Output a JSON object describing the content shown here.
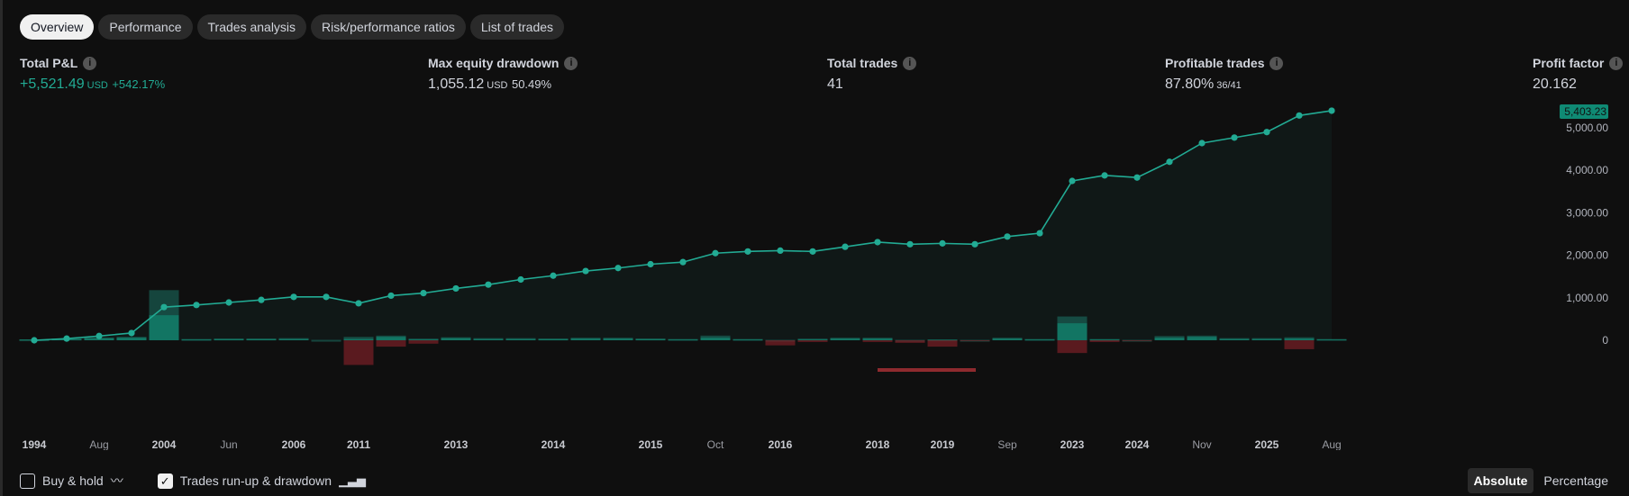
{
  "tabs": [
    "Overview",
    "Performance",
    "Trades analysis",
    "Risk/performance ratios",
    "List of trades"
  ],
  "active_tab": 0,
  "stats": {
    "total_pnl": {
      "label": "Total P&L",
      "value": "+5,521.49",
      "unit": "USD",
      "pct": "+542.17%"
    },
    "max_dd": {
      "label": "Max equity drawdown",
      "value": "1,055.12",
      "unit": "USD",
      "pct": "50.49%"
    },
    "total_trades": {
      "label": "Total trades",
      "value": "41"
    },
    "profitable": {
      "label": "Profitable trades",
      "value": "87.80%",
      "ratio": "36/41"
    },
    "profit_factor": {
      "label": "Profit factor",
      "value": "20.162"
    }
  },
  "footer": {
    "buy_hold": "Buy & hold",
    "buy_hold_checked": false,
    "runup": "Trades run-up & drawdown",
    "runup_checked": true,
    "absolute": "Absolute",
    "percentage": "Percentage",
    "selected": "Absolute"
  },
  "colors": {
    "line": "#22ab94",
    "runup": "#0f7a66",
    "drawdown": "#6e1f24",
    "bg": "#0f0f0f"
  },
  "chart_data": {
    "type": "line",
    "last_value_label": "5,403.23",
    "y_ticks": [
      "0",
      "1,000.00",
      "2,000.00",
      "3,000.00",
      "4,000.00",
      "5,000.00"
    ],
    "y_tick_values": [
      0,
      1000,
      2000,
      3000,
      4000,
      5000
    ],
    "x_labels": [
      {
        "t": "1994",
        "i": 0,
        "b": true
      },
      {
        "t": "Aug",
        "i": 2,
        "b": false
      },
      {
        "t": "2004",
        "i": 4,
        "b": true
      },
      {
        "t": "Jun",
        "i": 6,
        "b": false
      },
      {
        "t": "2006",
        "i": 8,
        "b": true
      },
      {
        "t": "2011",
        "i": 10,
        "b": true
      },
      {
        "t": "2013",
        "i": 13,
        "b": true
      },
      {
        "t": "2014",
        "i": 16,
        "b": true
      },
      {
        "t": "2015",
        "i": 19,
        "b": true
      },
      {
        "t": "Oct",
        "i": 21,
        "b": false
      },
      {
        "t": "2016",
        "i": 23,
        "b": true
      },
      {
        "t": "2018",
        "i": 26,
        "b": true
      },
      {
        "t": "2019",
        "i": 28,
        "b": true
      },
      {
        "t": "Sep",
        "i": 30,
        "b": false
      },
      {
        "t": "2023",
        "i": 32,
        "b": true
      },
      {
        "t": "2024",
        "i": 34,
        "b": true
      },
      {
        "t": "Nov",
        "i": 36,
        "b": false
      },
      {
        "t": "2025",
        "i": 38,
        "b": true
      },
      {
        "t": "Aug",
        "i": 40,
        "b": false
      }
    ],
    "equity": [
      0,
      40,
      100,
      170,
      780,
      830,
      890,
      950,
      1020,
      1020,
      870,
      1050,
      1110,
      1220,
      1310,
      1430,
      1520,
      1630,
      1700,
      1790,
      1840,
      2050,
      2090,
      2110,
      2090,
      2200,
      2310,
      2260,
      2280,
      2260,
      2440,
      2520,
      3750,
      3880,
      3830,
      4200,
      4640,
      4770,
      4900,
      5290,
      5403
    ],
    "runup": [
      20,
      40,
      60,
      80,
      1180,
      30,
      40,
      40,
      50,
      10,
      80,
      110,
      40,
      70,
      50,
      50,
      40,
      60,
      60,
      40,
      30,
      110,
      30,
      10,
      40,
      60,
      60,
      10,
      20,
      10,
      60,
      30,
      560,
      30,
      10,
      100,
      110,
      50,
      50,
      70,
      30
    ],
    "profit": [
      20,
      30,
      50,
      60,
      590,
      20,
      30,
      30,
      30,
      0,
      30,
      80,
      20,
      50,
      30,
      30,
      30,
      40,
      40,
      30,
      20,
      60,
      20,
      0,
      20,
      40,
      40,
      0,
      10,
      0,
      40,
      20,
      400,
      20,
      0,
      60,
      80,
      30,
      30,
      40,
      20
    ],
    "drawdown": [
      0,
      0,
      0,
      0,
      0,
      0,
      0,
      0,
      0,
      0,
      -580,
      -150,
      -80,
      0,
      0,
      0,
      0,
      0,
      0,
      0,
      0,
      0,
      0,
      -120,
      -40,
      0,
      -40,
      -60,
      -150,
      -20,
      0,
      0,
      -300,
      -40,
      -20,
      0,
      0,
      0,
      0,
      -210,
      0
    ],
    "highlight_range": [
      26,
      29
    ],
    "ylim": [
      -700,
      5600
    ]
  }
}
